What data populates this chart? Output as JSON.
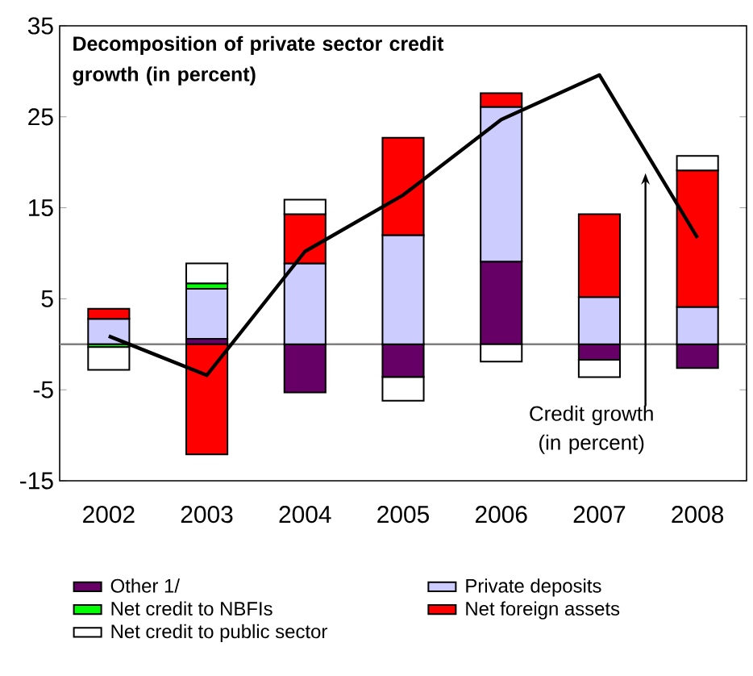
{
  "chart_data": {
    "type": "bar",
    "stacked": true,
    "title": "Decomposition of private sector credit growth  (in percent)",
    "categories": [
      "2002",
      "2003",
      "2004",
      "2005",
      "2006",
      "2007",
      "2008"
    ],
    "series": [
      {
        "name": "Other 1/",
        "color": "#660066",
        "values": [
          0,
          0.6,
          -5.3,
          -3.6,
          9.1,
          -1.7,
          -2.6
        ]
      },
      {
        "name": "Private deposits",
        "color": "#ccccff",
        "values": [
          2.8,
          5.5,
          8.9,
          12.0,
          17.0,
          5.2,
          4.1
        ]
      },
      {
        "name": "Net credit to NBFIs",
        "color": "#00ff00",
        "values": [
          -0.3,
          0.6,
          0,
          0,
          0,
          0,
          0
        ]
      },
      {
        "name": "Net foreign assets",
        "color": "#ff0000",
        "values": [
          1.1,
          -12.1,
          5.4,
          10.7,
          1.5,
          9.1,
          15.0
        ]
      },
      {
        "name": "Net credit to public sector",
        "color": "#ffffff",
        "values": [
          -2.5,
          2.2,
          1.6,
          -2.6,
          -1.9,
          -1.9,
          1.6
        ]
      },
      {
        "type": "line",
        "color": "#000000",
        "values": [
          0.9,
          -3.4,
          10.2,
          16.4,
          24.7,
          29.6,
          11.7
        ]
      }
    ],
    "ylim": [
      -15,
      35
    ],
    "yticks": [
      -15,
      -5,
      5,
      15,
      25,
      35
    ],
    "ref_lines": [
      {
        "axis": "y",
        "value": 0,
        "color": "#808080"
      }
    ],
    "annotations": [
      "Credit growth (in percent)"
    ],
    "legend": "bottom",
    "grid": false
  }
}
